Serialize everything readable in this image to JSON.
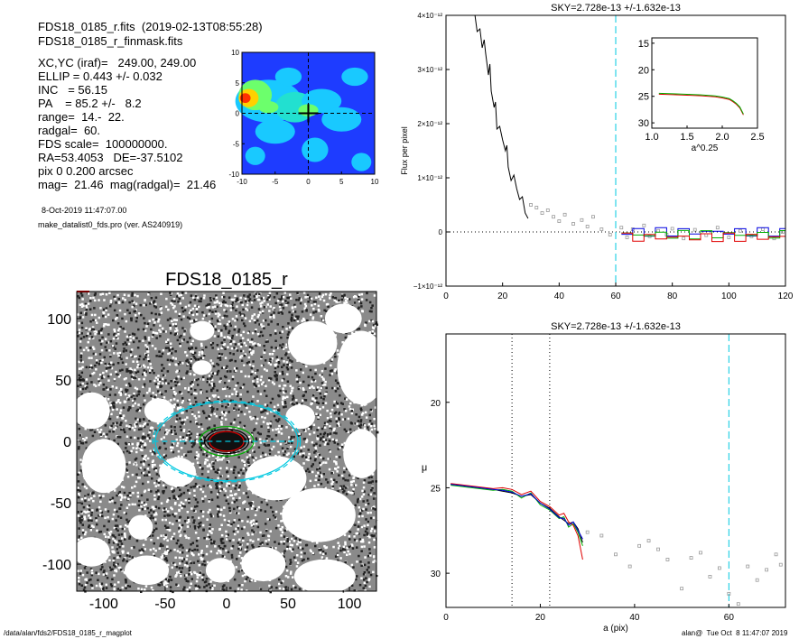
{
  "header": {
    "fits_file": "FDS18_0185_r.fits  (2019-02-13T08:55:28)",
    "mask_file": "FDS18_0185_r_finmask.fits",
    "params": [
      "XC,YC (iraf)=   249.00, 249.00",
      "ELLIP = 0.443 +/- 0.032",
      "INC   = 56.15",
      "PA    = 85.2 +/-   8.2",
      "range=  14.-  22.",
      "radgal=  60.",
      "FDS scale=  100000000.",
      "RA=53.4053   DE=-37.5102",
      "pix 0 0.200 arcsec",
      "mag=  21.46  mag(radgal)=  21.46"
    ],
    "date_line": "8-Oct-2019 11:47:07.00",
    "program_line": "make_datalist0_fds.pro (ver. AS240919)"
  },
  "footer": {
    "path": "/data/alan/fds2/FDS18_0185_r_magplot",
    "user_date": "alan@  Tue Oct  8 11:47:07 2019"
  },
  "colors": {
    "cyan": "#00c8e0",
    "green": "#00b000",
    "red": "#e00000",
    "blue": "#0000e0",
    "grey": "#999999"
  },
  "chart_data": [
    {
      "id": "contour",
      "type": "heatmap",
      "x_ticks": [
        "-10",
        "-5",
        "0",
        "5",
        "10"
      ],
      "y_ticks": [
        "10",
        "5",
        "0",
        "-5",
        "-10"
      ],
      "xlim": [
        -10,
        10
      ],
      "ylim": [
        -10,
        10
      ]
    },
    {
      "id": "image",
      "type": "scatter",
      "title": "FDS18_0185_r",
      "x_ticks": [
        "-100",
        "-50",
        "0",
        "50",
        "100"
      ],
      "y_ticks": [
        "100",
        "50",
        "0",
        "-50",
        "-100"
      ],
      "xlim": [
        -122,
        122
      ],
      "ylim": [
        -122,
        122
      ],
      "ellipses": [
        {
          "color": "cyan",
          "style": "dashed",
          "a": 60,
          "b": 33
        },
        {
          "color": "cyan",
          "style": "solid",
          "a": 58,
          "b": 32
        },
        {
          "color": "green",
          "style": "solid",
          "a": 22,
          "b": 12
        },
        {
          "color": "red",
          "style": "solid",
          "a": 14,
          "b": 8
        },
        {
          "color": "black",
          "style": "solid",
          "a": 18,
          "b": 10
        }
      ]
    },
    {
      "id": "flux",
      "type": "line",
      "title": "SKY=2.728e-13 +/-1.632e-13",
      "ylabel": "Flux per pixel",
      "xlim": [
        0,
        120
      ],
      "ylim": [
        -1e-12,
        4e-12
      ],
      "x_ticks": [
        "0",
        "20",
        "40",
        "60",
        "80",
        "100",
        "120"
      ],
      "y_ticks": [
        "4×10⁻¹²",
        "3×10⁻¹²",
        "2×10⁻¹²",
        "1×10⁻¹²",
        "0",
        "−1×10⁻¹²"
      ],
      "vline_cyan": 60,
      "series": [
        {
          "color": "black",
          "x": [
            10,
            11,
            12,
            12.8,
            13.5,
            14,
            15,
            15.5,
            16,
            17,
            17.5,
            18,
            19,
            20,
            21,
            21.5,
            22,
            23,
            24,
            25,
            26,
            27,
            28,
            29
          ],
          "y": [
            4.1e-12,
            3.7e-12,
            3.75e-12,
            3.4e-12,
            3.55e-12,
            3.3e-12,
            2.9e-12,
            3.1e-12,
            2.6e-12,
            2.3e-12,
            2.4e-12,
            1.9e-12,
            1.95e-12,
            1.7e-12,
            1.5e-12,
            1.6e-12,
            1.2e-12,
            9.5e-13,
            1.05e-12,
            8e-13,
            6e-13,
            6.5e-13,
            3.5e-13,
            2.5e-13
          ]
        }
      ],
      "points": {
        "x": [
          30,
          32,
          34,
          36,
          38,
          40,
          42,
          45,
          48,
          50,
          52,
          55,
          58,
          62,
          64,
          66,
          70,
          72,
          75,
          78,
          80,
          84,
          88,
          92,
          96,
          100,
          104,
          108,
          112,
          116,
          119
        ],
        "y": [
          5e-13,
          4.5e-13,
          3.5e-13,
          4e-13,
          2.8e-13,
          2e-13,
          3.2e-13,
          1.5e-13,
          2.2e-13,
          1e-13,
          2.8e-13,
          5e-14,
          -5e-14,
          8e-14,
          -1e-13,
          5e-14,
          1.2e-13,
          -8e-14,
          2e-14,
          -5e-14,
          6e-14,
          -1.2e-13,
          4e-14,
          -6e-14,
          8e-14,
          -1e-13,
          2e-14,
          -8e-14,
          5e-14,
          -1.2e-13,
          0.0
        ]
      },
      "inset": {
        "xlabel": "a^0.25",
        "x_ticks": [
          "1.0",
          "1.5",
          "2.0",
          "2.5"
        ],
        "y_ticks": [
          "15",
          "20",
          "25",
          "30"
        ],
        "xlim": [
          1.0,
          2.5
        ],
        "ylim": [
          31,
          14
        ],
        "x": [
          1.1,
          1.3,
          1.5,
          1.7,
          1.9,
          2.0,
          2.1,
          2.15,
          2.2,
          2.25,
          2.3
        ],
        "y": [
          24.6,
          24.7,
          24.8,
          24.9,
          25.1,
          25.3,
          25.6,
          26.0,
          26.5,
          27.2,
          28.5
        ]
      }
    },
    {
      "id": "profile",
      "type": "line",
      "title": "SKY=2.728e-13 +/-1.632e-13",
      "xlabel": "a (pix)",
      "ylabel": "μ",
      "xlim": [
        0,
        72
      ],
      "ylim": [
        32,
        16
      ],
      "x_ticks": [
        "0",
        "20",
        "40",
        "60"
      ],
      "y_ticks": [
        "20",
        "25",
        "30"
      ],
      "vlines_dotted": [
        14,
        22
      ],
      "vline_cyan": 60,
      "series": [
        {
          "color": "black",
          "x": [
            1,
            4,
            7,
            10,
            12,
            14,
            16,
            18,
            20,
            22,
            24,
            25,
            26,
            27,
            28,
            29
          ],
          "y": [
            24.8,
            24.9,
            25.0,
            25.1,
            25.2,
            25.3,
            25.5,
            25.4,
            25.9,
            26.2,
            26.7,
            26.9,
            27.1,
            27.0,
            27.4,
            28.2
          ]
        },
        {
          "color": "green",
          "x": [
            1,
            4,
            7,
            10,
            12,
            14,
            16,
            18,
            20,
            22,
            24,
            25,
            26,
            27,
            28,
            29
          ],
          "y": [
            24.85,
            24.95,
            25.05,
            25.15,
            25.1,
            25.2,
            25.6,
            25.3,
            26.0,
            26.3,
            26.8,
            26.7,
            27.3,
            27.1,
            27.6,
            28.4
          ]
        },
        {
          "color": "red",
          "x": [
            1,
            4,
            7,
            10,
            12,
            14,
            16,
            18,
            20,
            22,
            24,
            25,
            26,
            27,
            28,
            29
          ],
          "y": [
            24.75,
            24.85,
            24.95,
            25.05,
            25.0,
            25.1,
            25.4,
            25.2,
            25.8,
            26.1,
            26.6,
            26.5,
            27.0,
            27.2,
            27.8,
            29.2
          ]
        },
        {
          "color": "blue",
          "x": [
            1,
            4,
            7,
            10,
            12,
            14,
            16,
            18,
            20,
            22,
            24,
            25,
            26,
            27,
            28,
            29
          ],
          "y": [
            24.8,
            24.9,
            25.0,
            25.1,
            25.15,
            25.25,
            25.5,
            25.35,
            25.9,
            26.25,
            26.75,
            26.8,
            27.2,
            27.0,
            27.5,
            28.0
          ]
        }
      ],
      "points": {
        "x": [
          30,
          33,
          36,
          39,
          41,
          43,
          45,
          47,
          50,
          52,
          54,
          56,
          58,
          60,
          62,
          64,
          66,
          68,
          70,
          71
        ],
        "y": [
          27.6,
          27.8,
          28.9,
          29.6,
          28.4,
          28.1,
          28.6,
          29.2,
          30.9,
          29.1,
          28.8,
          30.2,
          29.7,
          31.2,
          31.8,
          29.6,
          30.4,
          29.8,
          28.9,
          29.5
        ]
      }
    }
  ]
}
